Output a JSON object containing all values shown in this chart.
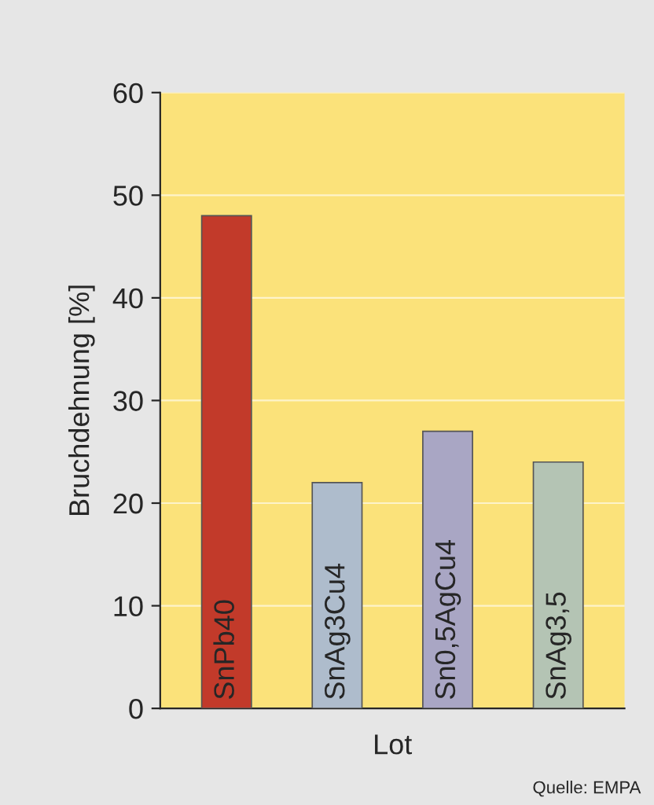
{
  "chart_data": {
    "type": "bar",
    "xlabel": "Lot",
    "ylabel": "Bruchdehnung [%]",
    "categories": [
      "SnPb40",
      "SnAg3Cu4",
      "Sn0,5AgCu4",
      "SnAg3,5"
    ],
    "values": [
      48,
      22,
      27,
      24
    ],
    "colors": [
      "#c23a2a",
      "#aebccc",
      "#a9a6c4",
      "#b4c4b4"
    ],
    "ylim": [
      0,
      60
    ],
    "yticks": [
      0,
      10,
      20,
      30,
      40,
      50,
      60
    ],
    "grid": "y",
    "annotations": [
      "Quelle: EMPA"
    ]
  }
}
